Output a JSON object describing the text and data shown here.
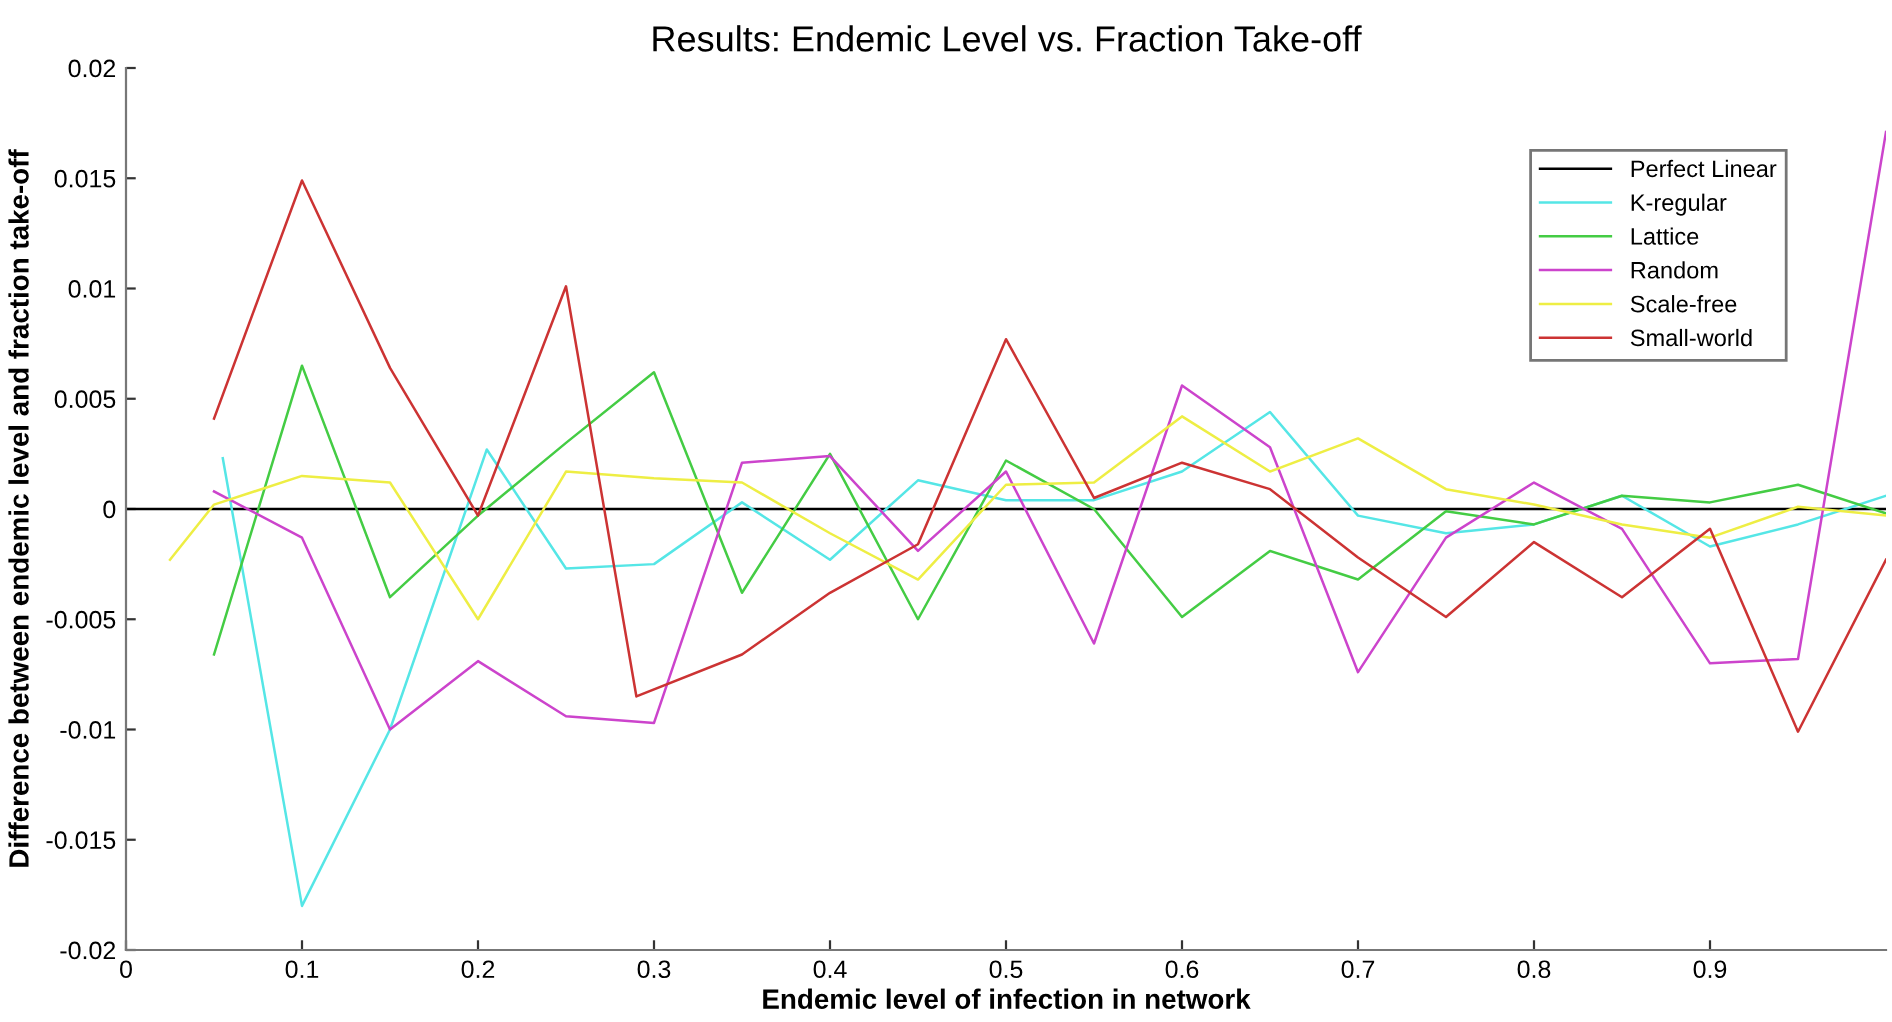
{
  "chart_data": {
    "type": "line",
    "title": "Results: Endemic Level vs. Fraction Take-off",
    "xlabel": "Endemic level of infection in network",
    "ylabel": "Difference between endemic level and fraction take-off",
    "xlim": [
      0,
      1
    ],
    "xticks": [
      0,
      0.1,
      0.2,
      0.3,
      0.4,
      0.5,
      0.6,
      0.7,
      0.8,
      0.9
    ],
    "ylim": [
      -0.02,
      0.02
    ],
    "yticks": [
      -0.02,
      -0.015,
      -0.01,
      -0.005,
      0,
      0.005,
      0.01,
      0.015,
      0.02
    ],
    "grid": false,
    "legend": "top right",
    "series": [
      {
        "name": "Perfect Linear",
        "color": "#000000",
        "x": [
          0,
          1
        ],
        "values": [
          0,
          0
        ]
      },
      {
        "name": "K-regular",
        "color": "#55e6e6",
        "x": [
          0.055,
          0.1,
          0.15,
          0.205,
          0.25,
          0.3,
          0.35,
          0.4,
          0.45,
          0.5,
          0.55,
          0.6,
          0.65,
          0.7,
          0.75,
          0.8,
          0.85,
          0.9,
          0.95,
          1.0
        ],
        "values": [
          0.0023,
          -0.018,
          -0.01,
          0.0027,
          -0.0027,
          -0.0025,
          0.0003,
          -0.0023,
          0.0013,
          0.0004,
          0.0004,
          0.0017,
          0.0044,
          -0.0003,
          -0.0011,
          -0.0007,
          0.0006,
          -0.0017,
          -0.0007,
          0.0006
        ]
      },
      {
        "name": "Lattice",
        "color": "#44cc44",
        "x": [
          0.05,
          0.1,
          0.15,
          0.2,
          0.25,
          0.3,
          0.35,
          0.4,
          0.45,
          0.5,
          0.55,
          0.6,
          0.65,
          0.7,
          0.75,
          0.8,
          0.85,
          0.9,
          0.95,
          1.0
        ],
        "values": [
          -0.0066,
          0.0065,
          -0.004,
          -0.0003,
          0.003,
          0.0062,
          -0.0038,
          0.0025,
          -0.005,
          0.0022,
          0.0,
          -0.0049,
          -0.0019,
          -0.0032,
          -0.0001,
          -0.0007,
          0.0006,
          0.0003,
          0.0011,
          -0.0002
        ]
      },
      {
        "name": "Random",
        "color": "#cc44cc",
        "x": [
          0.05,
          0.1,
          0.15,
          0.2,
          0.25,
          0.3,
          0.35,
          0.4,
          0.45,
          0.5,
          0.55,
          0.6,
          0.65,
          0.7,
          0.75,
          0.8,
          0.85,
          0.9,
          0.95,
          1.0
        ],
        "values": [
          0.0008,
          -0.0013,
          -0.01,
          -0.0069,
          -0.0094,
          -0.0097,
          0.0021,
          0.0024,
          -0.0019,
          0.0017,
          -0.0061,
          0.0056,
          0.0028,
          -0.0074,
          -0.0013,
          0.0012,
          -0.0009,
          -0.007,
          -0.0068,
          0.0171
        ]
      },
      {
        "name": "Scale-free",
        "color": "#eeee44",
        "x": [
          0.025,
          0.05,
          0.1,
          0.15,
          0.2,
          0.25,
          0.3,
          0.35,
          0.4,
          0.45,
          0.5,
          0.55,
          0.6,
          0.65,
          0.7,
          0.75,
          0.8,
          0.85,
          0.9,
          0.95,
          1.0
        ],
        "values": [
          -0.0023,
          0.0002,
          0.0015,
          0.0012,
          -0.005,
          0.0017,
          0.0014,
          0.0012,
          -0.0011,
          -0.0032,
          0.0011,
          0.0012,
          0.0042,
          0.0017,
          0.0032,
          0.0009,
          0.0002,
          -0.0007,
          -0.0013,
          0.0001,
          -0.0003
        ]
      },
      {
        "name": "Small-world",
        "color": "#cc3333",
        "x": [
          0.05,
          0.1,
          0.15,
          0.2,
          0.25,
          0.29,
          0.35,
          0.4,
          0.45,
          0.5,
          0.55,
          0.6,
          0.65,
          0.7,
          0.75,
          0.8,
          0.85,
          0.9,
          0.95,
          1.0
        ],
        "values": [
          0.0041,
          0.0149,
          0.0064,
          -0.0003,
          0.0101,
          -0.0085,
          -0.0066,
          -0.0038,
          -0.0016,
          0.0077,
          0.0005,
          0.0021,
          0.0009,
          -0.0022,
          -0.0049,
          -0.0015,
          -0.004,
          -0.0009,
          -0.0101,
          -0.0023
        ]
      }
    ]
  }
}
